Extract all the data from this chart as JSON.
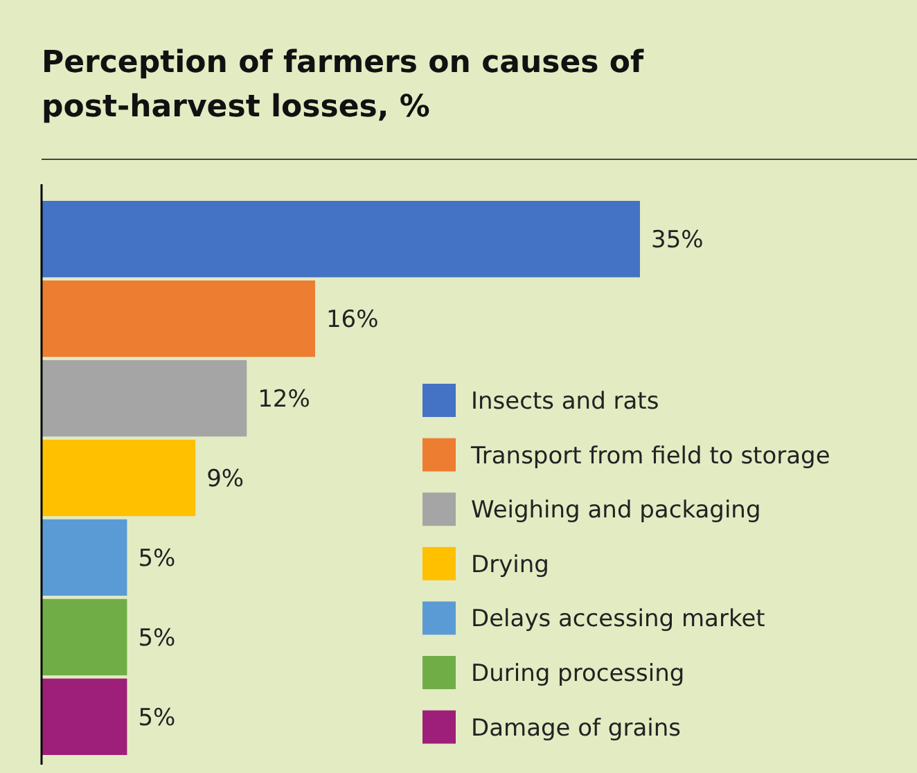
{
  "chart_data": {
    "type": "bar",
    "orientation": "horizontal",
    "stacked": true,
    "title": "Perception of farmers on causes of post-harvest losses, %",
    "categories": [
      null,
      null,
      null,
      null,
      null,
      null,
      null
    ],
    "series": [
      {
        "name": "Insects and rats",
        "color": "#4472c4",
        "values": [
          35,
          null,
          null,
          null,
          null,
          null,
          null
        ],
        "value_labels": [
          "35%",
          null,
          null,
          null,
          null,
          null,
          null
        ]
      },
      {
        "name": "Transport from field to storage",
        "color": "#ed7d31",
        "values": [
          null,
          16,
          null,
          null,
          null,
          null,
          null
        ],
        "value_labels": [
          null,
          "16%",
          null,
          null,
          null,
          null,
          null
        ]
      },
      {
        "name": "Weighing and packaging",
        "color": "#a5a5a5",
        "values": [
          null,
          null,
          12,
          null,
          null,
          null,
          null
        ],
        "value_labels": [
          null,
          null,
          "12%",
          null,
          null,
          null,
          null
        ]
      },
      {
        "name": "Drying",
        "color": "#ffc000",
        "values": [
          null,
          null,
          null,
          9,
          null,
          null,
          null
        ],
        "value_labels": [
          null,
          null,
          null,
          "9%",
          null,
          null,
          null
        ]
      },
      {
        "name": "Delays accessing market",
        "color": "#5b9bd5",
        "values": [
          null,
          null,
          null,
          null,
          5,
          null,
          null
        ],
        "value_labels": [
          null,
          null,
          null,
          null,
          "5%",
          null,
          null
        ]
      },
      {
        "name": "During processing",
        "color": "#70ad47",
        "values": [
          null,
          null,
          null,
          null,
          null,
          5,
          null
        ],
        "value_labels": [
          null,
          null,
          null,
          null,
          null,
          "5%",
          null
        ]
      },
      {
        "name": "Damage of grains",
        "color": "#9e1f7a",
        "values": [
          null,
          null,
          null,
          null,
          null,
          null,
          5
        ],
        "value_labels": [
          null,
          null,
          null,
          null,
          null,
          null,
          "5%"
        ]
      }
    ],
    "legend": "right"
  }
}
